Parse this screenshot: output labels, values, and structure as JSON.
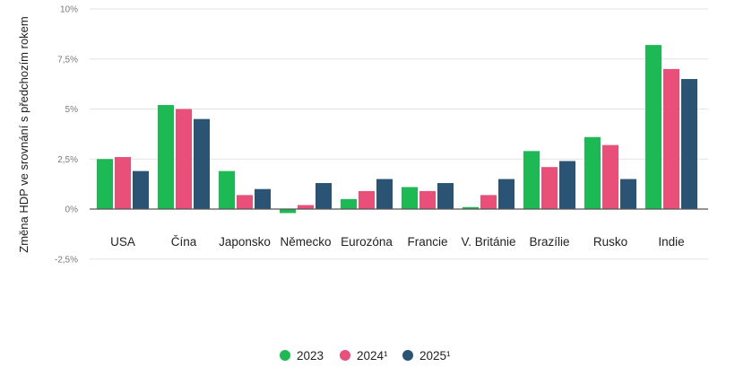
{
  "chart_data": {
    "type": "bar",
    "title": "",
    "xlabel": "",
    "ylabel": "Změna HDP ve srovnání s předchozím rokem",
    "ylim": [
      -2.5,
      10
    ],
    "yticks": [
      {
        "value": 10,
        "label": "10%"
      },
      {
        "value": 7.5,
        "label": "7,5%"
      },
      {
        "value": 5,
        "label": "5%"
      },
      {
        "value": 2.5,
        "label": "2,5%"
      },
      {
        "value": 0,
        "label": "0%"
      },
      {
        "value": -2.5,
        "label": "-2,5%"
      }
    ],
    "grid": true,
    "legend_position": "bottom-center",
    "categories": [
      "USA",
      "Čína",
      "Japonsko",
      "Německo",
      "Eurozóna",
      "Francie",
      "V. Británie",
      "Brazílie",
      "Rusko",
      "Indie"
    ],
    "series": [
      {
        "name": "2023",
        "color": "#1db954",
        "values": [
          2.5,
          5.2,
          1.9,
          -0.2,
          0.5,
          1.1,
          0.1,
          2.9,
          3.6,
          8.2
        ]
      },
      {
        "name": "2024¹",
        "color": "#e8507a",
        "values": [
          2.6,
          5.0,
          0.7,
          0.2,
          0.9,
          0.9,
          0.7,
          2.1,
          3.2,
          7.0
        ]
      },
      {
        "name": "2025¹",
        "color": "#2a5374",
        "values": [
          1.9,
          4.5,
          1.0,
          1.3,
          1.5,
          1.3,
          1.5,
          2.4,
          1.5,
          6.5
        ]
      }
    ]
  }
}
